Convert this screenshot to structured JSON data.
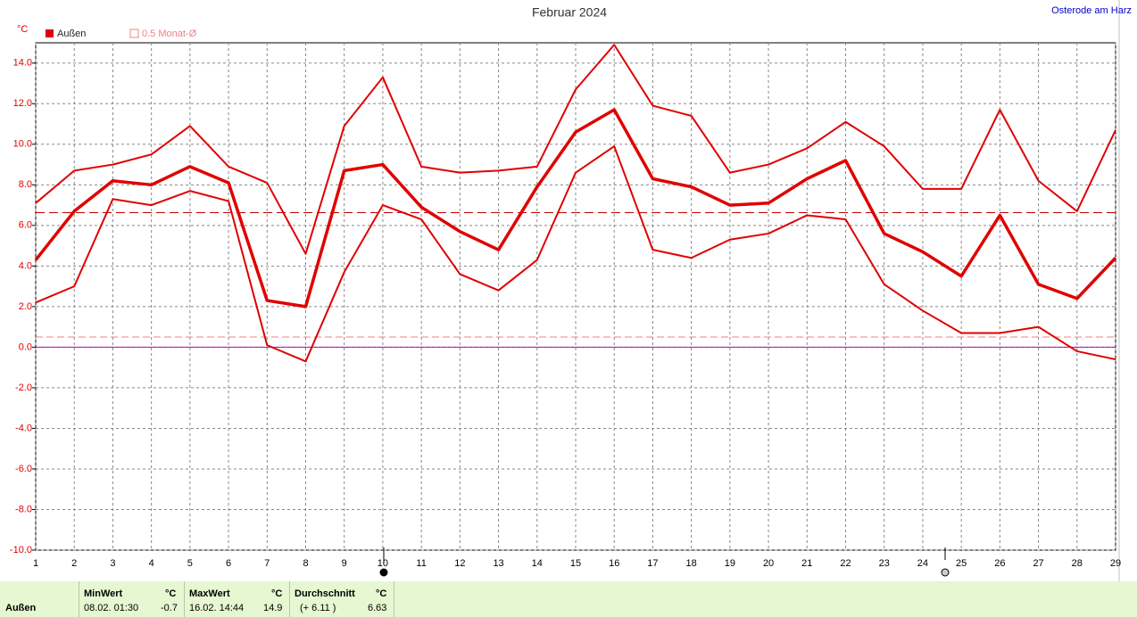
{
  "chart_data": {
    "type": "line",
    "title": "Februar 2024",
    "location": "Osterode am Harz",
    "unit": "°C",
    "x": [
      1,
      2,
      3,
      4,
      5,
      6,
      7,
      8,
      9,
      10,
      11,
      12,
      13,
      14,
      15,
      16,
      17,
      18,
      19,
      20,
      21,
      22,
      23,
      24,
      25,
      26,
      27,
      28,
      29
    ],
    "xlim": [
      1,
      29
    ],
    "series": [
      {
        "name": "Außen",
        "color": "#e00000",
        "values": [
          4.3,
          6.7,
          8.2,
          8.0,
          8.9,
          8.1,
          2.3,
          2.0,
          8.7,
          9.0,
          6.9,
          5.7,
          4.8,
          7.9,
          10.6,
          11.7,
          8.3,
          7.9,
          7.0,
          7.1,
          8.3,
          9.2,
          5.6,
          4.7,
          3.5,
          6.5,
          3.1,
          2.4,
          4.4
        ],
        "max": [
          7.1,
          8.7,
          9.0,
          9.5,
          10.9,
          8.9,
          8.1,
          4.6,
          10.9,
          13.3,
          8.9,
          8.6,
          8.7,
          8.9,
          12.7,
          14.9,
          11.9,
          11.4,
          8.6,
          9.0,
          9.8,
          11.1,
          9.9,
          7.8,
          7.8,
          11.7,
          8.2,
          6.7,
          10.7
        ],
        "min": [
          2.2,
          3.0,
          7.3,
          7.0,
          7.7,
          7.2,
          0.1,
          -0.7,
          3.7,
          7.0,
          6.3,
          3.6,
          2.8,
          4.3,
          8.6,
          9.9,
          4.8,
          4.4,
          5.3,
          5.6,
          6.5,
          6.3,
          3.1,
          1.8,
          0.7,
          0.7,
          1.0,
          -0.2,
          -0.6
        ]
      }
    ],
    "reference_label": "0.5 Monat-Ø",
    "reference_line": 0.5,
    "reference_color": "#f08080",
    "ylim": [
      -10,
      15
    ],
    "yticks": [
      {
        "value": -10,
        "label": "-10.0"
      },
      {
        "value": -8,
        "label": "-8.0"
      },
      {
        "value": -6,
        "label": "-6.0"
      },
      {
        "value": -4,
        "label": "-4.0"
      },
      {
        "value": -2,
        "label": "-2.0"
      },
      {
        "value": 0,
        "label": "0.0"
      },
      {
        "value": 2,
        "label": "2.0"
      },
      {
        "value": 4,
        "label": "4.0"
      },
      {
        "value": 6,
        "label": "6.0"
      },
      {
        "value": 8,
        "label": "8.0"
      },
      {
        "value": 10,
        "label": "10.0"
      },
      {
        "value": 12,
        "label": "12.0"
      },
      {
        "value": 14,
        "label": "14.0"
      }
    ],
    "grid": true
  },
  "footer": {
    "label": "Außen",
    "min": {
      "title": "MinWert",
      "unit": "°C",
      "time": "08.02.  01:30",
      "value": "-0.7"
    },
    "max": {
      "title": "MaxWert",
      "unit": "°C",
      "time": "16.02.  14:44",
      "value": "14.9"
    },
    "avg": {
      "title": "Durchschnitt",
      "unit": "°C",
      "time": "(+ 6.11 )",
      "value": 6.63
    }
  }
}
